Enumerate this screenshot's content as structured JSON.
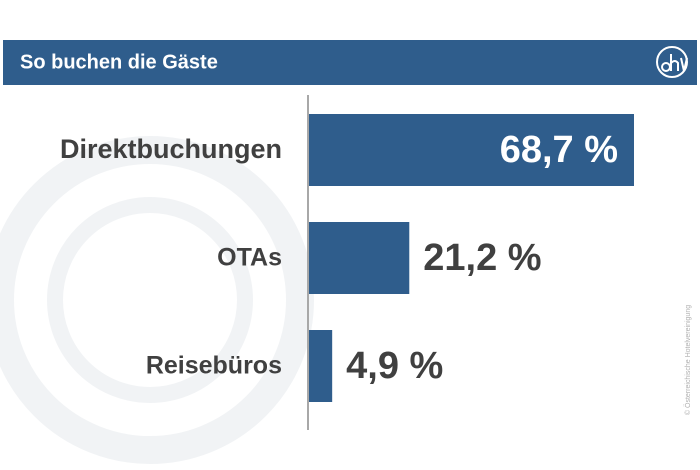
{
  "chart_data": {
    "type": "barh",
    "title": "So buchen die Gäste",
    "categories": [
      "Direktbuchungen",
      "OTAs",
      "Reisebüros"
    ],
    "values": [
      68.7,
      21.2,
      4.9
    ],
    "value_labels": [
      "68,7 %",
      "21,2 %",
      "4,9 %"
    ],
    "color": "#2f5d8c",
    "source": "© Österreichische Hotelvereinigung"
  }
}
